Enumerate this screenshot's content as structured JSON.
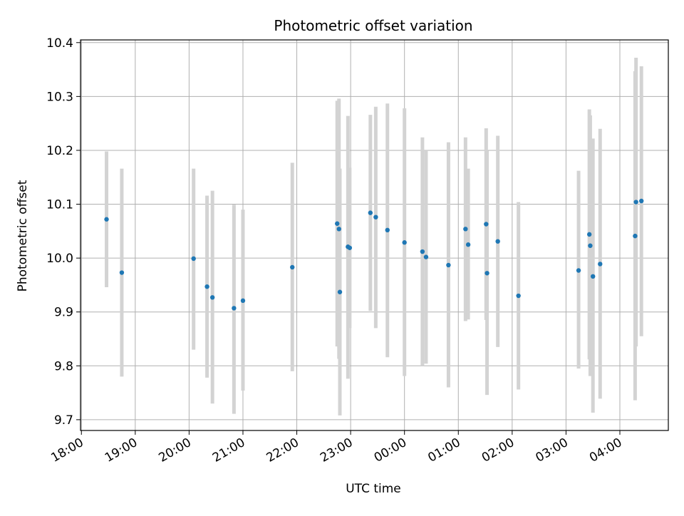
{
  "chart_data": {
    "type": "scatter",
    "title": "Photometric offset variation",
    "xlabel": "UTC time",
    "ylabel": "Photometric offset",
    "grid": true,
    "x_range": [
      "2024-01-01T17:59",
      "2024-01-02T04:54"
    ],
    "x_ticks": [
      {
        "t": "2024-01-01T18:00",
        "label": "18:00"
      },
      {
        "t": "2024-01-01T19:00",
        "label": "19:00"
      },
      {
        "t": "2024-01-01T20:00",
        "label": "20:00"
      },
      {
        "t": "2024-01-01T21:00",
        "label": "21:00"
      },
      {
        "t": "2024-01-01T22:00",
        "label": "22:00"
      },
      {
        "t": "2024-01-01T23:00",
        "label": "23:00"
      },
      {
        "t": "2024-01-02T00:00",
        "label": "00:00"
      },
      {
        "t": "2024-01-02T01:00",
        "label": "01:00"
      },
      {
        "t": "2024-01-02T02:00",
        "label": "02:00"
      },
      {
        "t": "2024-01-02T03:00",
        "label": "03:00"
      },
      {
        "t": "2024-01-02T04:00",
        "label": "04:00"
      }
    ],
    "ylim": [
      9.68,
      10.405
    ],
    "y_ticks": [
      9.7,
      9.8,
      9.9,
      10.0,
      10.1,
      10.2,
      10.3,
      10.4
    ],
    "y_tick_labels": [
      "9.7",
      "9.8",
      "9.9",
      "10.0",
      "10.1",
      "10.2",
      "10.3",
      "10.4"
    ],
    "marker_color": "#1f77b4",
    "errorbar_color": "#d3d3d3",
    "points": [
      {
        "t": "2024-01-01T18:28",
        "y": 10.072,
        "lo": 9.946,
        "hi": 10.198
      },
      {
        "t": "2024-01-01T18:45",
        "y": 9.973,
        "lo": 9.78,
        "hi": 10.166
      },
      {
        "t": "2024-01-01T20:05",
        "y": 9.999,
        "lo": 9.83,
        "hi": 10.166
      },
      {
        "t": "2024-01-01T20:20",
        "y": 9.947,
        "lo": 9.778,
        "hi": 10.116
      },
      {
        "t": "2024-01-01T20:26",
        "y": 9.927,
        "lo": 9.73,
        "hi": 10.125
      },
      {
        "t": "2024-01-01T20:50",
        "y": 9.907,
        "lo": 9.711,
        "hi": 10.099
      },
      {
        "t": "2024-01-01T21:00",
        "y": 9.921,
        "lo": 9.754,
        "hi": 10.09
      },
      {
        "t": "2024-01-01T21:55",
        "y": 9.983,
        "lo": 9.79,
        "hi": 10.177
      },
      {
        "t": "2024-01-01T22:45",
        "y": 10.064,
        "lo": 9.836,
        "hi": 10.292
      },
      {
        "t": "2024-01-01T22:47",
        "y": 10.054,
        "lo": 9.813,
        "hi": 10.296
      },
      {
        "t": "2024-01-01T22:48",
        "y": 9.937,
        "lo": 9.708,
        "hi": 10.166
      },
      {
        "t": "2024-01-01T22:57",
        "y": 10.021,
        "lo": 9.776,
        "hi": 10.264
      },
      {
        "t": "2024-01-01T22:59",
        "y": 10.019,
        "lo": 9.87,
        "hi": 10.168
      },
      {
        "t": "2024-01-01T23:22",
        "y": 10.084,
        "lo": 9.902,
        "hi": 10.266
      },
      {
        "t": "2024-01-01T23:28",
        "y": 10.076,
        "lo": 9.87,
        "hi": 10.281
      },
      {
        "t": "2024-01-01T23:41",
        "y": 10.052,
        "lo": 9.816,
        "hi": 10.287
      },
      {
        "t": "2024-01-02T00:00",
        "y": 10.029,
        "lo": 9.781,
        "hi": 10.278
      },
      {
        "t": "2024-01-02T00:20",
        "y": 10.012,
        "lo": 9.8,
        "hi": 10.224
      },
      {
        "t": "2024-01-02T00:24",
        "y": 10.002,
        "lo": 9.804,
        "hi": 10.2
      },
      {
        "t": "2024-01-02T00:49",
        "y": 9.987,
        "lo": 9.76,
        "hi": 10.215
      },
      {
        "t": "2024-01-02T01:08",
        "y": 10.054,
        "lo": 9.883,
        "hi": 10.224
      },
      {
        "t": "2024-01-02T01:11",
        "y": 10.025,
        "lo": 9.886,
        "hi": 10.166
      },
      {
        "t": "2024-01-02T01:31",
        "y": 10.063,
        "lo": 9.885,
        "hi": 10.241
      },
      {
        "t": "2024-01-02T01:32",
        "y": 9.972,
        "lo": 9.746,
        "hi": 10.199
      },
      {
        "t": "2024-01-02T01:44",
        "y": 10.031,
        "lo": 9.835,
        "hi": 10.227
      },
      {
        "t": "2024-01-02T02:07",
        "y": 9.93,
        "lo": 9.756,
        "hi": 10.104
      },
      {
        "t": "2024-01-02T03:14",
        "y": 9.977,
        "lo": 9.795,
        "hi": 10.162
      },
      {
        "t": "2024-01-02T03:26",
        "y": 10.044,
        "lo": 9.812,
        "hi": 10.276
      },
      {
        "t": "2024-01-02T03:27",
        "y": 10.023,
        "lo": 9.781,
        "hi": 10.265
      },
      {
        "t": "2024-01-02T03:30",
        "y": 9.966,
        "lo": 9.713,
        "hi": 10.222
      },
      {
        "t": "2024-01-02T03:38",
        "y": 9.989,
        "lo": 9.739,
        "hi": 10.24
      },
      {
        "t": "2024-01-02T04:17",
        "y": 10.041,
        "lo": 9.736,
        "hi": 10.347
      },
      {
        "t": "2024-01-02T04:18",
        "y": 10.104,
        "lo": 9.836,
        "hi": 10.372
      },
      {
        "t": "2024-01-02T04:24",
        "y": 10.106,
        "lo": 9.855,
        "hi": 10.356
      }
    ]
  }
}
